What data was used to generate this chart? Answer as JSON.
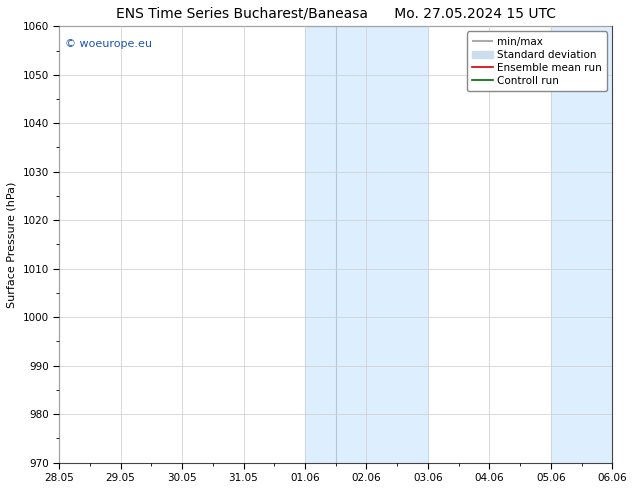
{
  "title_left": "ENS Time Series Bucharest/Baneasa",
  "title_right": "Mo. 27.05.2024 15 UTC",
  "ylabel": "Surface Pressure (hPa)",
  "ylim": [
    970,
    1060
  ],
  "yticks": [
    970,
    980,
    990,
    1000,
    1010,
    1020,
    1030,
    1040,
    1050,
    1060
  ],
  "x_tick_labels": [
    "28.05",
    "29.05",
    "30.05",
    "31.05",
    "01.06",
    "02.06",
    "03.06",
    "04.06",
    "05.06",
    "06.06"
  ],
  "x_tick_positions": [
    0,
    1,
    2,
    3,
    4,
    5,
    6,
    7,
    8,
    9
  ],
  "shaded_regions": [
    {
      "xmin": 4.0,
      "xmax": 4.5
    },
    {
      "xmin": 4.5,
      "xmax": 6.0
    },
    {
      "xmin": 8.0,
      "xmax": 9.0
    }
  ],
  "shaded_color": "#ddeeff",
  "shaded_color2": "#c8dff0",
  "watermark_text": "© woeurope.eu",
  "watermark_color": "#1a55bb",
  "legend_entries": [
    {
      "label": "min/max",
      "color": "#aaaaaa",
      "lw": 1.5
    },
    {
      "label": "Standard deviation",
      "color": "#ccdded",
      "lw": 6
    },
    {
      "label": "Ensemble mean run",
      "color": "#cc0000",
      "lw": 1.2
    },
    {
      "label": "Controll run",
      "color": "#006600",
      "lw": 1.2
    }
  ],
  "bg_color": "#ffffff",
  "grid_color": "#cccccc",
  "title_fontsize": 10,
  "axis_label_fontsize": 8,
  "tick_fontsize": 7.5,
  "legend_fontsize": 7.5,
  "watermark_fontsize": 8
}
